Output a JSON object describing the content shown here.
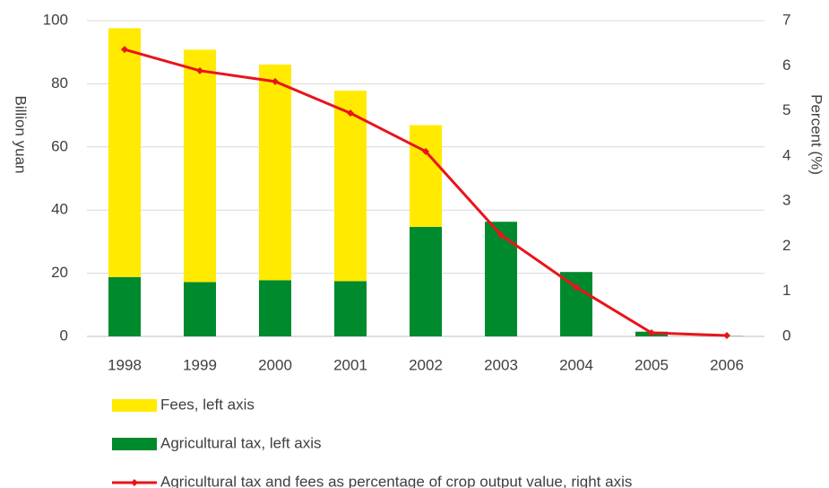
{
  "chart_data": {
    "type": "bar",
    "stacked": true,
    "categories": [
      "1998",
      "1999",
      "2000",
      "2001",
      "2002",
      "2003",
      "2004",
      "2005",
      "2006"
    ],
    "series": [
      {
        "name": "Agricultural tax, left axis",
        "color": "#008a2e",
        "values": [
          18.8,
          17.2,
          17.8,
          17.5,
          34.7,
          36.3,
          20.4,
          1.5,
          0.1
        ]
      },
      {
        "name": "Fees, left axis",
        "color": "#ffea00",
        "values": [
          78.8,
          73.6,
          68.3,
          60.3,
          32.2,
          0,
          0,
          0,
          0
        ]
      },
      {
        "name": "Agricultural tax and fees as percentage of crop output value, right axis",
        "color": "#e8141b",
        "type": "line",
        "axis": "y2",
        "values": [
          6.36,
          5.89,
          5.65,
          4.95,
          4.1,
          2.25,
          1.09,
          0.08,
          0.02
        ]
      }
    ],
    "ylabel": "Billion yuan",
    "y2label": "Percent (%)",
    "ylim": [
      0,
      100
    ],
    "yticks": [
      0,
      20,
      40,
      60,
      80,
      100
    ],
    "y2lim": [
      0,
      7
    ],
    "y2ticks": [
      0,
      1,
      2,
      3,
      4,
      5,
      6,
      7
    ],
    "grid": true,
    "legend": "bottom"
  }
}
